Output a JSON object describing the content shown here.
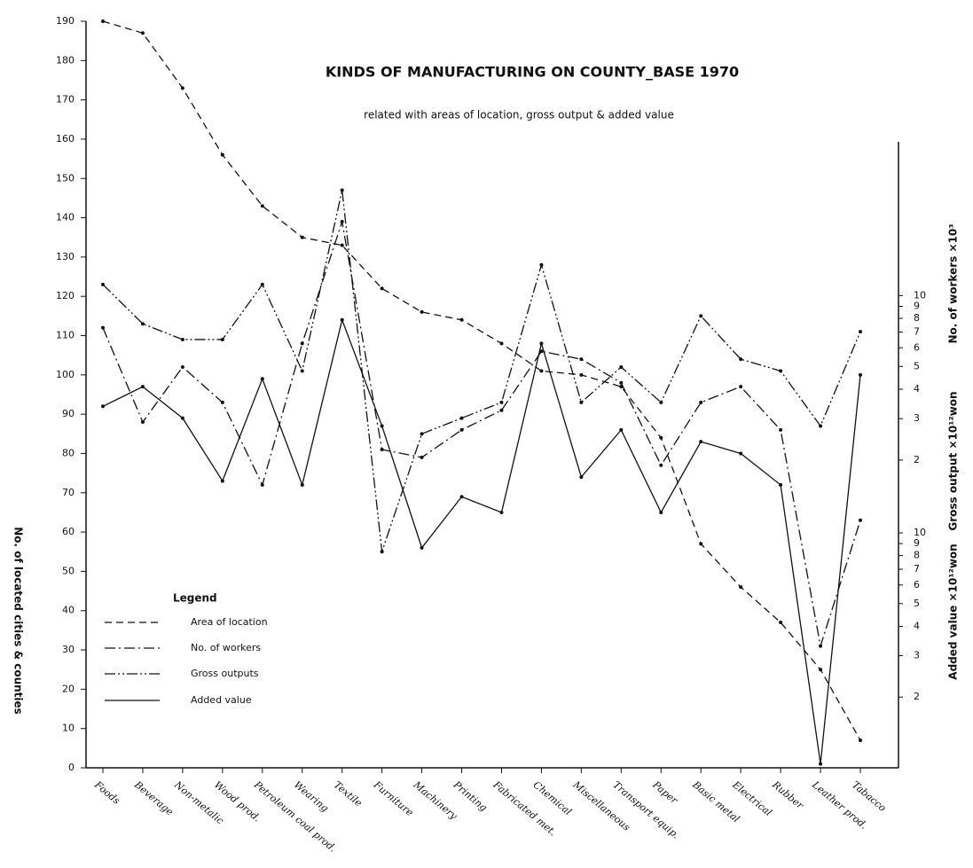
{
  "chart_data": {
    "type": "line",
    "title": "KINDS OF MANUFACTURING ON COUNTY_BASE 1970",
    "subtitle": "related with areas of location, gross output & added value",
    "ylabel": "No. of located cities & counties",
    "categories": [
      "Foods",
      "Beverage",
      "Non-metalic",
      "Wood prod.",
      "Petroleum coal prod.",
      "Wearing",
      "Textile",
      "Furniture",
      "Machinery",
      "Printing",
      "Fabricated met.",
      "Chemical",
      "Miscellaneous",
      "Transport equip.",
      "Paper",
      "Basic metal",
      "Electrical",
      "Rubber",
      "Leather prod.",
      "Tabacco"
    ],
    "ylim": [
      0,
      190
    ],
    "yticks": [
      0,
      10,
      20,
      30,
      40,
      50,
      60,
      70,
      80,
      90,
      100,
      110,
      120,
      130,
      140,
      150,
      160,
      170,
      180,
      190
    ],
    "y2label": "No. of workers ×10³",
    "y2label_b": "Gross output ×10¹²won",
    "y2lim": [
      1.4,
      45
    ],
    "y2ticks": [
      10,
      9,
      8,
      7,
      6,
      5,
      4,
      3,
      2
    ],
    "y3label": "Added value ×10¹²won",
    "y3lim": [
      1,
      12
    ],
    "y3ticks": [
      10,
      9,
      8,
      7,
      6,
      5,
      4,
      3,
      2
    ],
    "right_log_scale": true,
    "legend_title": "Legend",
    "legend_position": "lower left",
    "series": [
      {
        "name": "Area of location",
        "color": "#111111",
        "line_style": "dashed",
        "values": [
          190,
          187,
          173,
          156,
          143,
          135,
          133,
          122,
          116,
          114,
          108,
          101,
          100,
          97,
          84,
          57,
          46,
          37,
          25,
          7
        ]
      },
      {
        "name": "No. of workers",
        "color": "#111111",
        "line_style": "dash-dot",
        "values": [
          112,
          88,
          102,
          93,
          72,
          108,
          139,
          81,
          79,
          86,
          91,
          106,
          104,
          98,
          77,
          93,
          97,
          86,
          31,
          63
        ]
      },
      {
        "name": "Gross outputs",
        "color": "#111111",
        "line_style": "dash-dot-dot",
        "values": [
          123,
          113,
          109,
          109,
          123,
          101,
          147,
          55,
          85,
          89,
          93,
          128,
          93,
          102,
          93,
          115,
          104,
          101,
          87,
          111
        ]
      },
      {
        "name": "Added value",
        "color": "#111111",
        "line_style": "solid",
        "values": [
          92,
          97,
          89,
          73,
          99,
          72,
          114,
          87,
          56,
          69,
          65,
          108,
          74,
          86,
          65,
          83,
          80,
          72,
          1,
          100
        ]
      }
    ]
  }
}
